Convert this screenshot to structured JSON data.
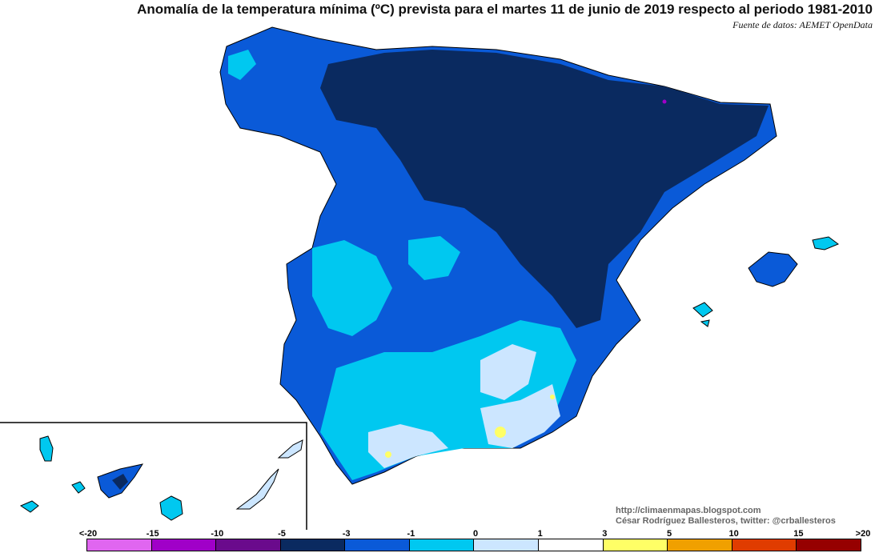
{
  "title": "Anomalía de la temperatura mínima (ºC) prevista para el martes 11 de junio de 2019 respecto al periodo 1981-2010",
  "source": "Fuente de datos: AEMET OpenData",
  "credits": {
    "blog": "http://climaenmapas.blogspot.com",
    "author": "César Rodríguez Ballesteros, twitter: @crballesteros"
  },
  "legend": {
    "labels": [
      "<-20",
      "-15",
      "-10",
      "-5",
      "-3",
      "-1",
      "0",
      "1",
      "3",
      "5",
      "10",
      "15",
      ">20"
    ],
    "colors": [
      "#e066f0",
      "#a000c8",
      "#6a0a8c",
      "#0a2a60",
      "#0a5ad8",
      "#00c8f0",
      "#cce6ff",
      "#ffffff",
      "#ffff66",
      "#f0a000",
      "#e03c00",
      "#960000",
      "#6e3c00"
    ]
  },
  "map": {
    "region_colors": {
      "dark_navy": "#0a2a60",
      "blue": "#0a5ad8",
      "cyan": "#00c8f0",
      "pale_blue": "#cce6ff",
      "white": "#ffffff",
      "yellow": "#ffff66",
      "magenta": "#a000c8"
    }
  }
}
